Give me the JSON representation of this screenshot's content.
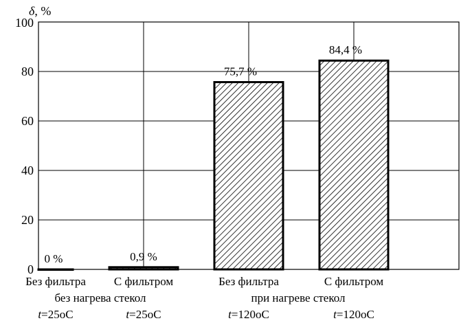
{
  "chart_data": {
    "type": "bar",
    "ylabel_symbol": "δ",
    "ylabel_unit": ", %",
    "ylim": [
      0,
      100
    ],
    "yticks": [
      "0",
      "20",
      "40",
      "60",
      "80",
      "100"
    ],
    "grid": true,
    "categories": [
      "Без фильтра",
      "С фильтром",
      "Без фильтра",
      "С фильтром"
    ],
    "values": [
      0,
      0.9,
      75.7,
      84.4
    ],
    "data_labels": [
      "0 %",
      "0,9 %",
      "75,7 %",
      "84,4 %"
    ],
    "temperatures": [
      {
        "symbol": "t",
        "text": "=25",
        "unit": "oC"
      },
      {
        "symbol": "t",
        "text": "=25",
        "unit": "oC"
      },
      {
        "symbol": "t",
        "text": "=120",
        "unit": "oC"
      },
      {
        "symbol": "t",
        "text": "=120",
        "unit": "oC"
      }
    ],
    "group_labels": [
      "без нагрева стекол",
      "при нагреве стекол"
    ],
    "bar_fill": "hatched"
  }
}
